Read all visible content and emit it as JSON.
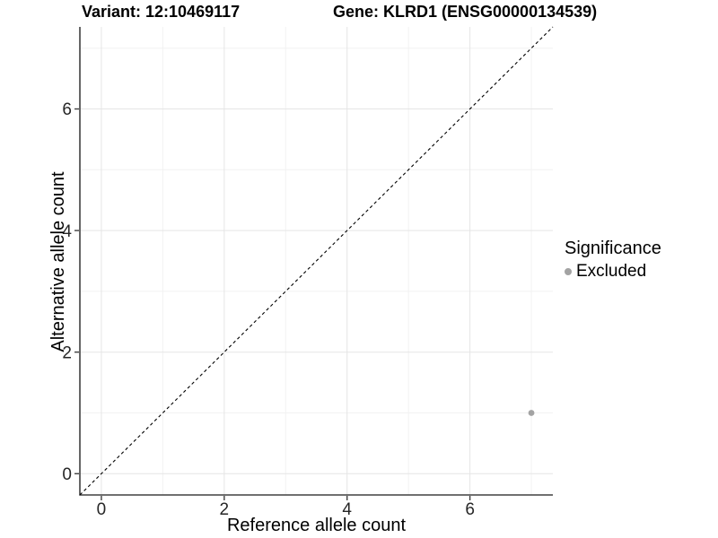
{
  "header": {
    "variant_title": "Variant: 12:10469117",
    "gene_title": "Gene: KLRD1 (ENSG00000134539)"
  },
  "axes": {
    "x_title": "Reference allele count",
    "y_title": "Alternative allele count"
  },
  "legend": {
    "title": "Significance",
    "items": [
      {
        "label": "Excluded",
        "color": "#a3a3a3"
      }
    ]
  },
  "chart_data": {
    "type": "scatter",
    "title": "Variant: 12:10469117 | Gene: KLRD1 (ENSG00000134539)",
    "xlabel": "Reference allele count",
    "ylabel": "Alternative allele count",
    "xlim": [
      -0.35,
      7.35
    ],
    "ylim": [
      -0.35,
      7.35
    ],
    "x_ticks": [
      0,
      2,
      4,
      6
    ],
    "y_ticks": [
      0,
      2,
      4,
      6
    ],
    "x_minor_ticks": [
      1,
      3,
      5,
      7
    ],
    "y_minor_ticks": [
      1,
      3,
      5,
      7
    ],
    "grid": "major+minor",
    "legend_position": "right-center",
    "series": [
      {
        "name": "Excluded",
        "color": "#a3a3a3",
        "marker": "circle",
        "points": [
          {
            "x": 7,
            "y": 1
          }
        ]
      }
    ],
    "reference_line": {
      "label": "identity y=x",
      "style": "dashed",
      "color": "#000000",
      "from": [
        -0.35,
        -0.35
      ],
      "to": [
        7.35,
        7.35
      ]
    }
  },
  "colors": {
    "background": "#ffffff",
    "grid_major": "#e5e5e5",
    "grid_minor": "#f2f2f2",
    "axis_line": "#404040",
    "tick_mark": "#404040",
    "tick_label": "#262626",
    "text": "#000000",
    "excluded_point": "#a3a3a3"
  }
}
